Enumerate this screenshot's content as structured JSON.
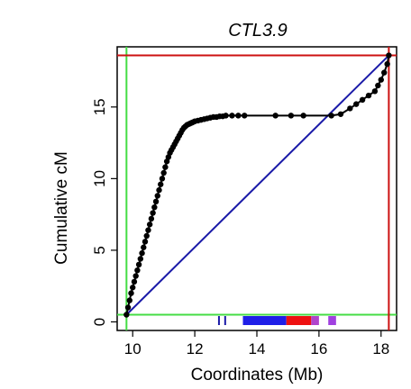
{
  "chart_data": {
    "type": "scatter",
    "title": "CTL3.9",
    "xlabel": "Coordinates (Mb)",
    "ylabel": "Cumulative cM",
    "xlim": [
      9.5,
      18.5
    ],
    "ylim": [
      -0.6,
      19.2
    ],
    "xticks": [
      "10",
      "12",
      "14",
      "16",
      "18"
    ],
    "yticks": [
      "0",
      "5",
      "10",
      "15"
    ],
    "grid": false,
    "series": [
      {
        "kind": "points",
        "color": "#000000",
        "x": [
          9.8,
          9.85,
          9.9,
          9.95,
          10.0,
          10.05,
          10.1,
          10.15,
          10.2,
          10.25,
          10.3,
          10.35,
          10.4,
          10.45,
          10.5,
          10.55,
          10.6,
          10.65,
          10.7,
          10.75,
          10.8,
          10.85,
          10.9,
          10.95,
          11.0,
          11.05,
          11.1,
          11.15,
          11.2,
          11.25,
          11.3,
          11.35,
          11.4,
          11.45,
          11.5,
          11.55,
          11.6,
          11.65,
          11.7,
          11.75,
          11.8,
          11.85,
          11.9,
          11.95,
          12.0,
          12.1,
          12.2,
          12.3,
          12.4,
          12.5,
          12.6,
          12.7,
          12.8,
          12.9,
          13.0,
          13.2,
          13.4,
          13.6,
          14.6,
          15.1,
          15.5,
          16.4,
          16.7,
          17.0,
          17.2,
          17.4,
          17.6,
          17.8,
          17.9,
          18.0,
          18.1,
          18.2,
          18.25
        ],
        "y": [
          0.5,
          1.0,
          1.5,
          2.0,
          2.4,
          2.8,
          3.2,
          3.6,
          4.0,
          4.4,
          4.8,
          5.2,
          5.6,
          6.0,
          6.4,
          6.8,
          7.2,
          7.6,
          8.0,
          8.4,
          8.8,
          9.2,
          9.6,
          10.0,
          10.4,
          10.8,
          11.2,
          11.5,
          11.8,
          12.0,
          12.2,
          12.4,
          12.6,
          12.8,
          13.0,
          13.2,
          13.4,
          13.55,
          13.65,
          13.75,
          13.8,
          13.85,
          13.9,
          13.95,
          14.0,
          14.05,
          14.1,
          14.15,
          14.2,
          14.25,
          14.3,
          14.3,
          14.35,
          14.35,
          14.4,
          14.4,
          14.4,
          14.4,
          14.4,
          14.4,
          14.4,
          14.4,
          14.5,
          14.9,
          15.2,
          15.5,
          15.8,
          16.1,
          16.5,
          16.9,
          17.4,
          18.0,
          18.6
        ]
      }
    ],
    "connect_points": true,
    "connector_color": "#000000",
    "diagonal": {
      "from": [
        9.8,
        0.5
      ],
      "to": [
        18.25,
        18.6
      ],
      "color": "#1a1aa8"
    },
    "green_lines": {
      "x": 9.8,
      "y": 0.5,
      "color": "#44dd44"
    },
    "red_lines": {
      "x": 18.25,
      "y": 18.6,
      "color": "#cc1111"
    },
    "rug": [
      {
        "from": 12.75,
        "to": 12.77,
        "color": "#1a1aa8"
      },
      {
        "from": 12.95,
        "to": 12.97,
        "color": "#1a1aa8"
      },
      {
        "from": 13.55,
        "to": 14.95,
        "color": "#1f1fe8"
      },
      {
        "from": 14.95,
        "to": 15.75,
        "color": "#ee1111"
      },
      {
        "from": 15.75,
        "to": 16.0,
        "color": "#b044cc"
      },
      {
        "from": 16.3,
        "to": 16.55,
        "color": "#a040e0"
      }
    ]
  }
}
